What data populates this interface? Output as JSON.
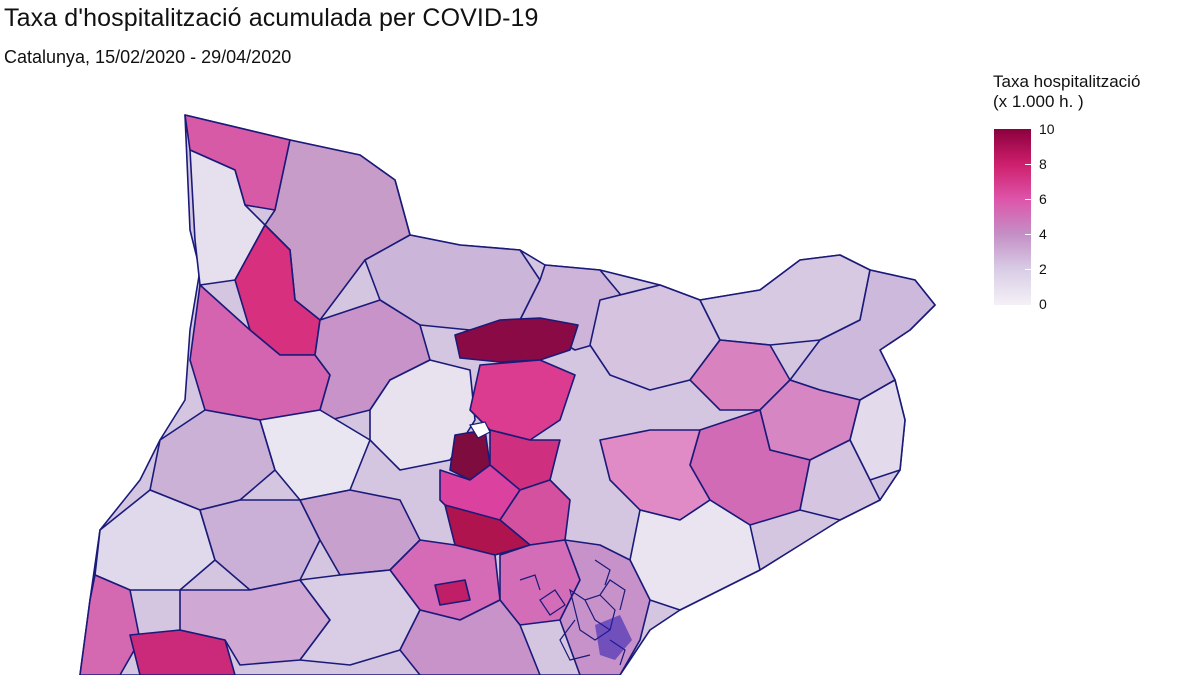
{
  "title": "Taxa d'hospitalització acumulada per COVID-19",
  "subtitle": "Catalunya, 15/02/2020 - 29/04/2020",
  "legend": {
    "title_line1": "Taxa hospitalització",
    "title_line2": "(x 1.000 h. )",
    "ticks": [
      "10",
      "8",
      "6",
      "4",
      "2",
      "0"
    ],
    "range": [
      0,
      10
    ],
    "colors": [
      "#f4f0f7",
      "#d9cde6",
      "#c490c6",
      "#dd55aa",
      "#ce1f6d",
      "#8b003d"
    ]
  },
  "map": {
    "border_color": "#1a1a7a",
    "region": "Catalunya"
  }
}
